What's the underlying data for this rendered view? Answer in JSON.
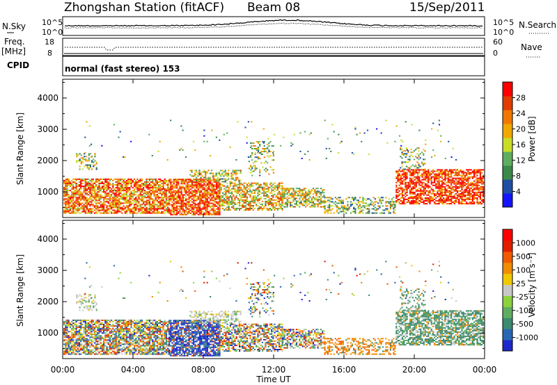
{
  "header": {
    "station": "Zhongshan Station (fitACF)",
    "beam": "Beam 08",
    "date": "15/Sep/2011"
  },
  "summary_panels": {
    "nsky_label": "N.Sky",
    "nsearch_label": "N.Search",
    "freq_label": "Freq.",
    "freq_unit": "[MHz]",
    "nave_label": "Nave",
    "cpid_label": "CPID",
    "cpid_value": "normal (fast stereo) 153",
    "noise_ticks": [
      "10^5",
      "10^0"
    ],
    "freq_ticks": [
      "18",
      "8"
    ],
    "nave_ticks": [
      "60",
      "0"
    ]
  },
  "chart_data": [
    {
      "type": "heatmap",
      "name": "power",
      "ylabel": "Slant Range [km]",
      "ylim": [
        180,
        4600
      ],
      "yticks": [
        "1000",
        "2000",
        "3000",
        "4000"
      ],
      "colorbar_label": "Power [dB]",
      "colorbar_ticks": [
        "4",
        "8",
        "12",
        "16",
        "20",
        "24",
        "28"
      ],
      "colors": [
        "#1414ff",
        "#1f4ea3",
        "#3c8a4a",
        "#5fae5f",
        "#c8dc28",
        "#f0a800",
        "#f07800",
        "#e03c00",
        "#ff0000"
      ],
      "legend_placement": "right"
    },
    {
      "type": "heatmap",
      "name": "velocity",
      "ylabel": "Slant Range [km]",
      "ylim": [
        180,
        4600
      ],
      "yticks": [
        "1000",
        "2000",
        "3000",
        "4000"
      ],
      "xlabel": "Time UT",
      "xticks": [
        "00:00",
        "04:00",
        "08:00",
        "12:00",
        "16:00",
        "20:00",
        "00:00"
      ],
      "colorbar_label": "Velocity [m s⁻¹]",
      "colorbar_ticks": [
        "1000",
        "500",
        "100",
        "25",
        "-25",
        "-100",
        "-500",
        "-1000"
      ],
      "colors": [
        "#1e28c8",
        "#2866b4",
        "#3c8a70",
        "#5fae5f",
        "#8cd23c",
        "#c8c8c8",
        "#f0c800",
        "#f08c00",
        "#f05a00",
        "#e01e00",
        "#ff0000"
      ],
      "legend_placement": "right"
    }
  ]
}
